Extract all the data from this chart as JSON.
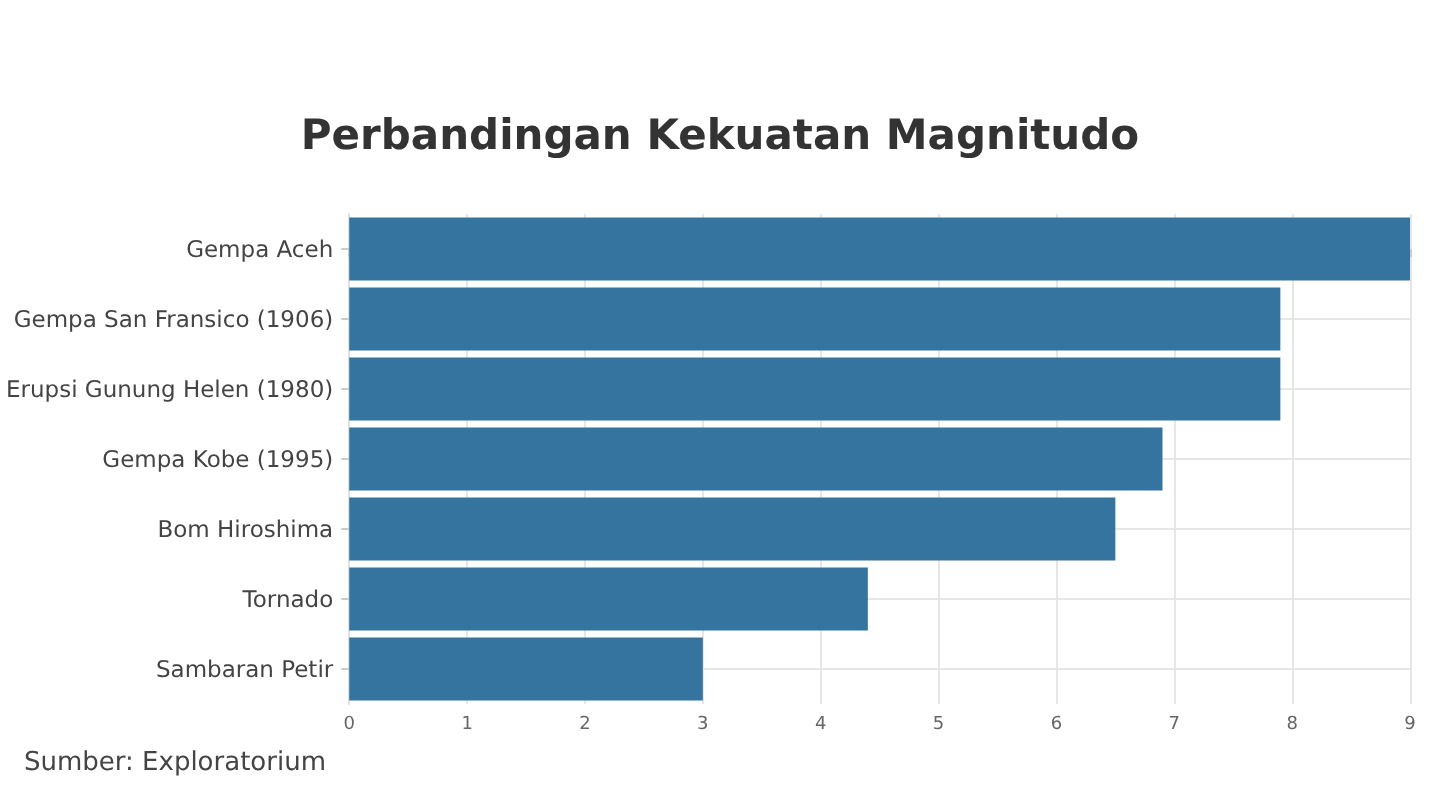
{
  "chart_data": {
    "type": "bar",
    "orientation": "horizontal",
    "title": "Perbandingan Kekuatan Magnitudo",
    "categories": [
      "Gempa Aceh",
      "Gempa San Fransico (1906)",
      "Erupsi Gunung Helen (1980)",
      "Gempa Kobe (1995)",
      "Bom Hiroshima",
      "Tornado",
      "Sambaran Petir"
    ],
    "values": [
      9,
      7.9,
      7.9,
      6.9,
      6.5,
      4.4,
      3
    ],
    "color": "#35749f",
    "xlim": [
      0,
      9
    ],
    "xticks": [
      0,
      1,
      2,
      3,
      4,
      5,
      6,
      7,
      8,
      9
    ],
    "grid": true,
    "annotations": [
      "Sumber: Exploratorium"
    ]
  }
}
